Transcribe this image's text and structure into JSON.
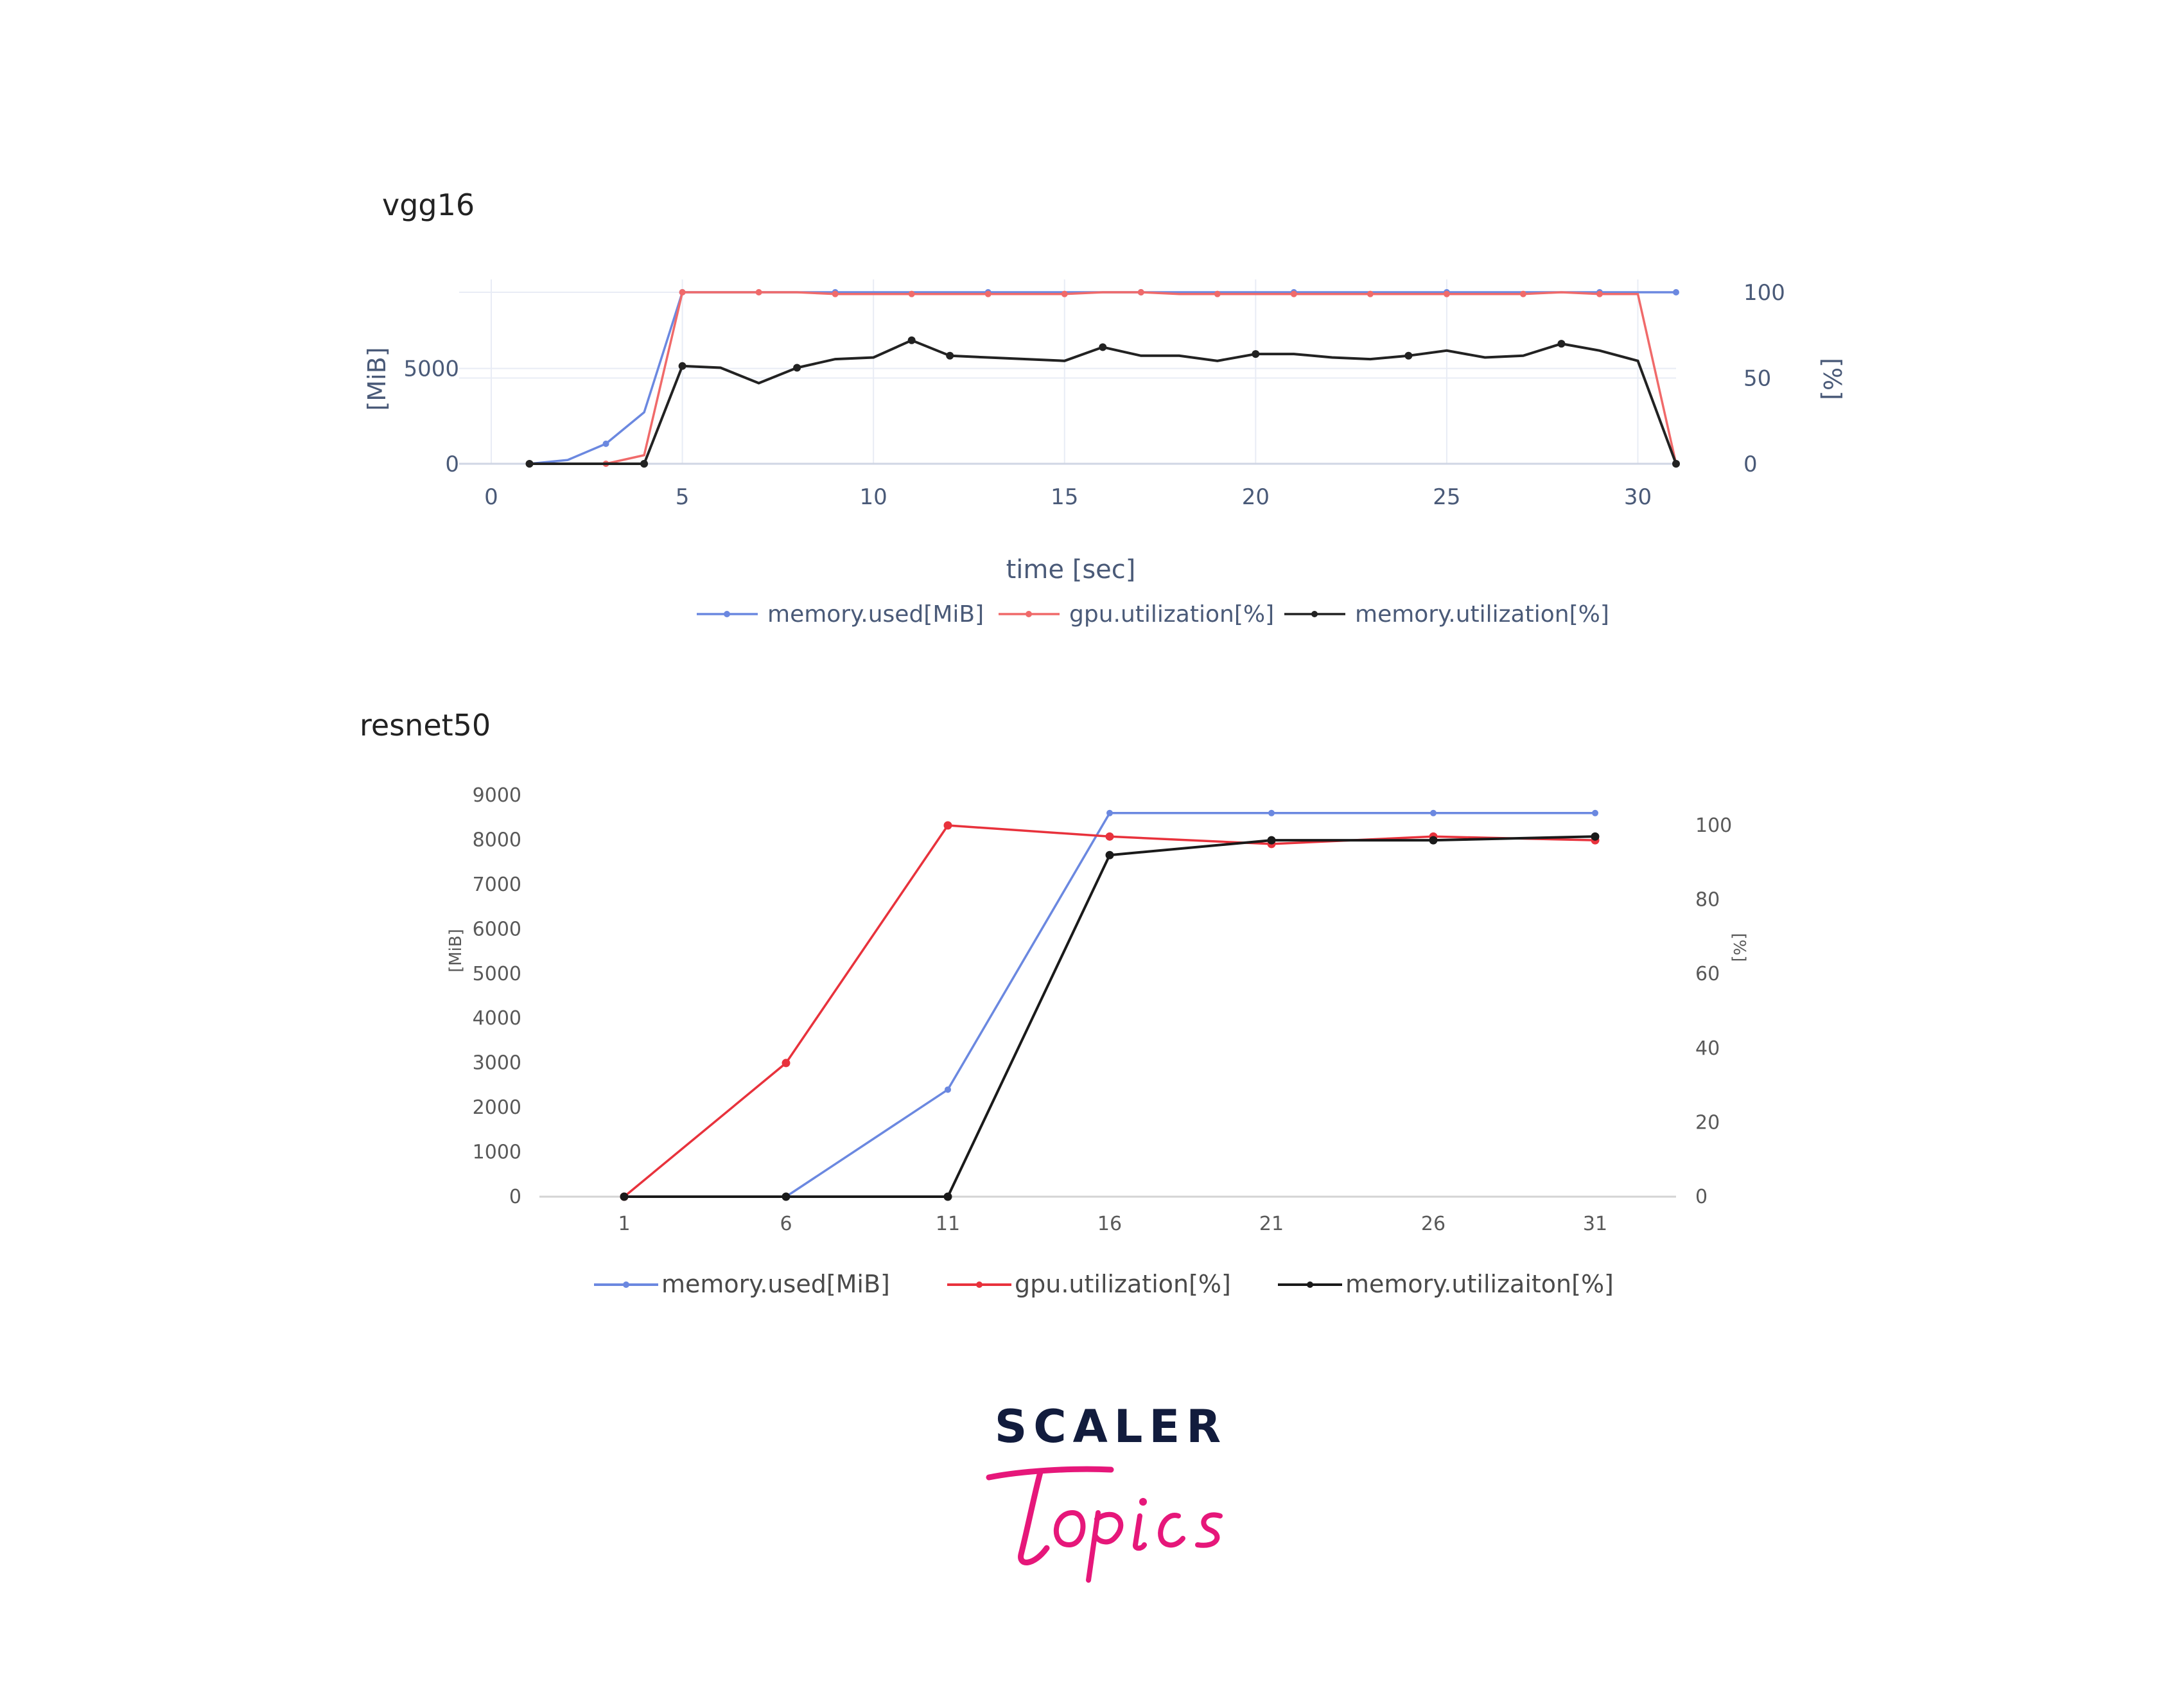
{
  "chart_data": [
    {
      "type": "line",
      "title": "vgg16",
      "xlabel": "time [sec]",
      "ylabel": "[MiB]",
      "y2label": "[%]",
      "xlim": [
        0,
        31
      ],
      "xticks": [
        0,
        5,
        10,
        15,
        20,
        25,
        30
      ],
      "ylim": [
        0,
        9000
      ],
      "yticks": [
        0,
        5000
      ],
      "y2lim": [
        0,
        100
      ],
      "y2ticks": [
        0,
        50,
        100
      ],
      "grid": true,
      "legend": "bottom",
      "series": [
        {
          "name": "memory.used[MiB]",
          "axis": "left",
          "color": "#6b88e0",
          "x": [
            1,
            2,
            3,
            4,
            5,
            7,
            9,
            11,
            13,
            15,
            17,
            19,
            21,
            23,
            25,
            27,
            29,
            31
          ],
          "y": [
            0,
            200,
            1050,
            2700,
            9000,
            9000,
            9000,
            9000,
            9000,
            9000,
            9000,
            9000,
            9000,
            9000,
            9000,
            9000,
            9000,
            9000
          ]
        },
        {
          "name": "gpu.utilization[%]",
          "axis": "right",
          "color": "#f06a6a",
          "x": [
            1,
            2,
            3,
            4,
            5,
            6,
            7,
            8,
            9,
            10,
            11,
            12,
            13,
            14,
            15,
            16,
            17,
            18,
            19,
            20,
            21,
            22,
            23,
            24,
            25,
            26,
            27,
            28,
            29,
            30,
            31
          ],
          "y": [
            0,
            0,
            0,
            5,
            100,
            100,
            100,
            100,
            99,
            99,
            99,
            99,
            99,
            99,
            99,
            100,
            100,
            99,
            99,
            99,
            99,
            99,
            99,
            99,
            99,
            99,
            99,
            100,
            99,
            99,
            0
          ]
        },
        {
          "name": "memory.utilization[%]",
          "axis": "right",
          "color": "#222222",
          "x": [
            1,
            2,
            3,
            4,
            5,
            6,
            7,
            8,
            9,
            10,
            11,
            12,
            13,
            14,
            15,
            16,
            17,
            18,
            19,
            20,
            21,
            22,
            23,
            24,
            25,
            26,
            27,
            28,
            29,
            30,
            31
          ],
          "y": [
            0,
            0,
            0,
            0,
            57,
            56,
            47,
            56,
            61,
            62,
            72,
            63,
            62,
            61,
            60,
            68,
            63,
            63,
            60,
            64,
            64,
            62,
            61,
            63,
            66,
            62,
            63,
            70,
            66,
            60,
            0
          ]
        }
      ]
    },
    {
      "type": "line",
      "title": "resnet50",
      "xlabel": "",
      "ylabel": "[MiB]",
      "y2label": "[%]",
      "categories": [
        "1",
        "6",
        "11",
        "16",
        "21",
        "26",
        "31"
      ],
      "ylim": [
        0,
        9000
      ],
      "yticks": [
        0,
        1000,
        2000,
        3000,
        4000,
        5000,
        6000,
        7000,
        8000,
        9000
      ],
      "y2lim": [
        0,
        100
      ],
      "y2ticks": [
        0,
        20,
        40,
        60,
        80,
        100
      ],
      "grid": false,
      "legend": "bottom",
      "series": [
        {
          "name": "memory.used[MiB]",
          "axis": "left",
          "color": "#6b88e0",
          "values": [
            0,
            0,
            2400,
            8600,
            8600,
            8600,
            8600
          ]
        },
        {
          "name": "gpu.utilization[%]",
          "axis": "right",
          "color": "#e8323c",
          "values": [
            0,
            36,
            100,
            97,
            95,
            97,
            96
          ]
        },
        {
          "name": "memory.utilizaiton[%]",
          "axis": "right",
          "color": "#1a1a1a",
          "values": [
            0,
            0,
            0,
            92,
            96,
            96,
            97
          ]
        }
      ]
    }
  ],
  "logo": {
    "top_text": "SCALER",
    "bottom_text": "Topics",
    "top_color": "#121c3d",
    "bottom_color": "#e6177a"
  }
}
